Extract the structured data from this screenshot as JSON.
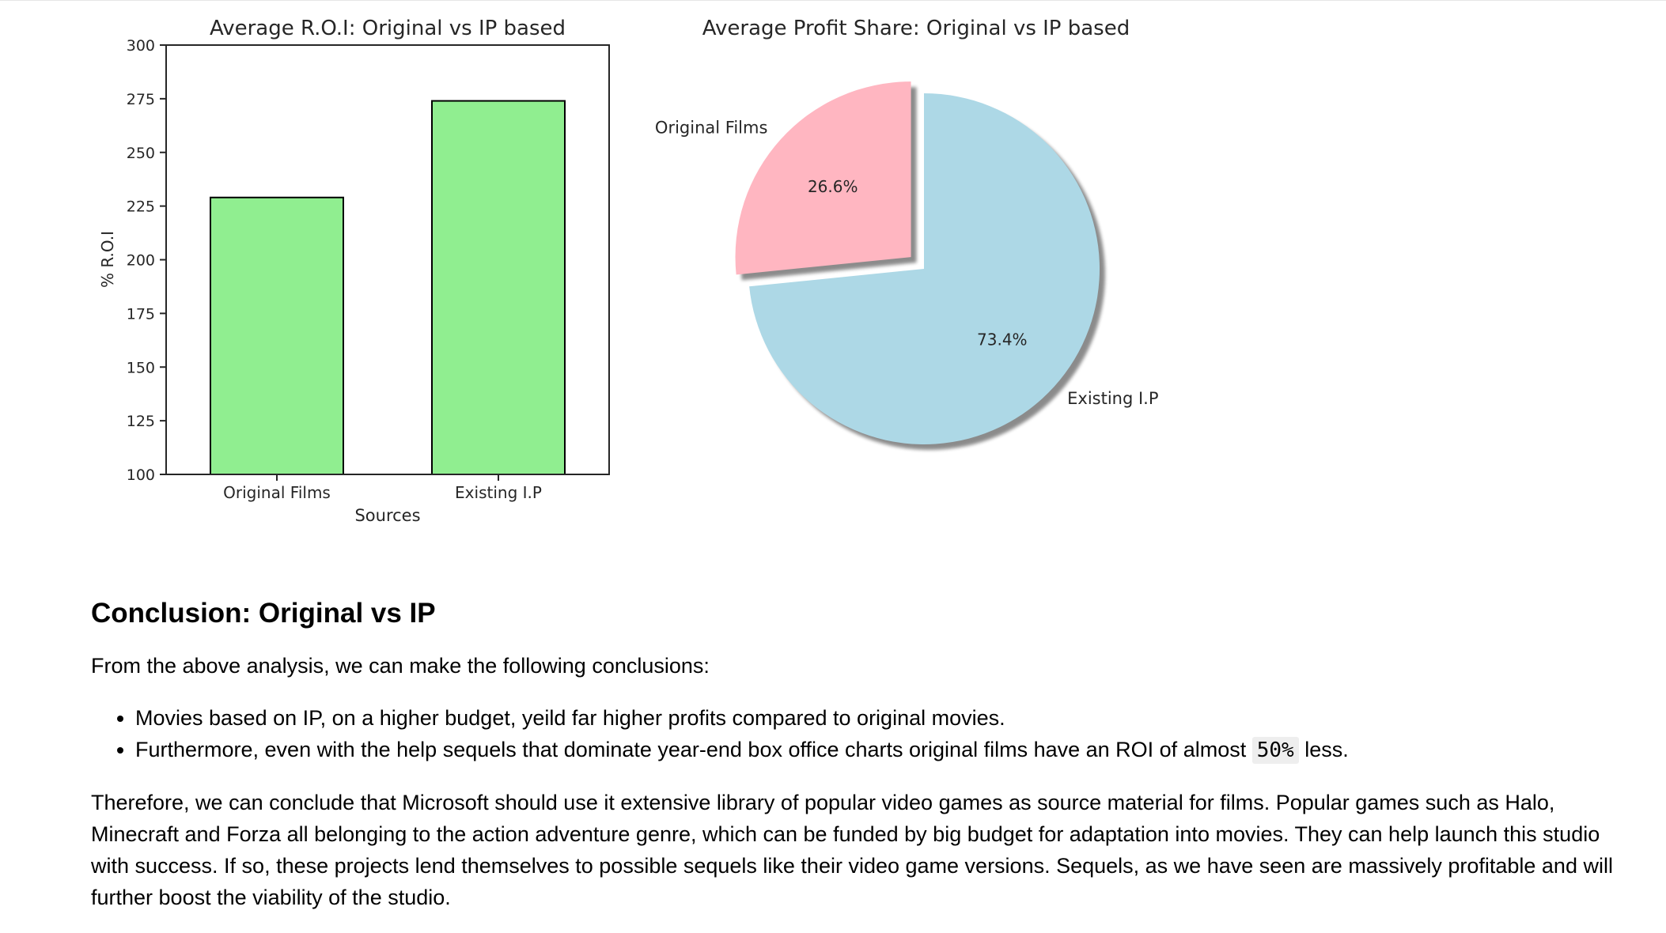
{
  "chart_data": [
    {
      "type": "bar",
      "title": "Average R.O.I: Original vs IP based",
      "xlabel": "Sources",
      "ylabel": "% R.O.I",
      "categories": [
        "Original Films",
        "Existing I.P"
      ],
      "values": [
        229,
        274
      ],
      "ylim": [
        100,
        300
      ],
      "yticks": [
        100,
        125,
        150,
        175,
        200,
        225,
        250,
        275,
        300
      ],
      "bar_color": "#90ee90",
      "edge_color": "#000000",
      "grid": false
    },
    {
      "type": "pie",
      "title": "Average Profit Share: Original vs IP based",
      "labels": [
        "Original Films",
        "Existing I.P"
      ],
      "values": [
        26.6,
        73.4
      ],
      "value_labels": [
        "26.6%",
        "73.4%"
      ],
      "colors": [
        "#ffb6c1",
        "#add8e6"
      ],
      "explode": [
        1,
        0
      ],
      "shadow": true
    }
  ],
  "conclusion": {
    "heading": "Conclusion: Original vs IP",
    "intro": "From the above analysis, we can make the following conclusions:",
    "bullet1": "Movies based on IP, on a higher budget, yeild far higher profits compared to original movies.",
    "bullet2_pre": "Furthermore, even with the help sequels that dominate year-end box office charts original films have an ROI of almost ",
    "bullet2_code": "50%",
    "bullet2_post": " less.",
    "paragraph": "Therefore, we can conclude that Microsoft should use it extensive library of popular video games as source material for films. Popular games such as Halo, Minecraft and Forza all belonging to the action adventure genre, which can be funded by big budget for adaptation into movies. They can help launch this studio with success. If so, these projects lend themselves to possible sequels like their video game versions. Sequels, as we have seen are massively profitable and will further boost the viability of the studio."
  }
}
